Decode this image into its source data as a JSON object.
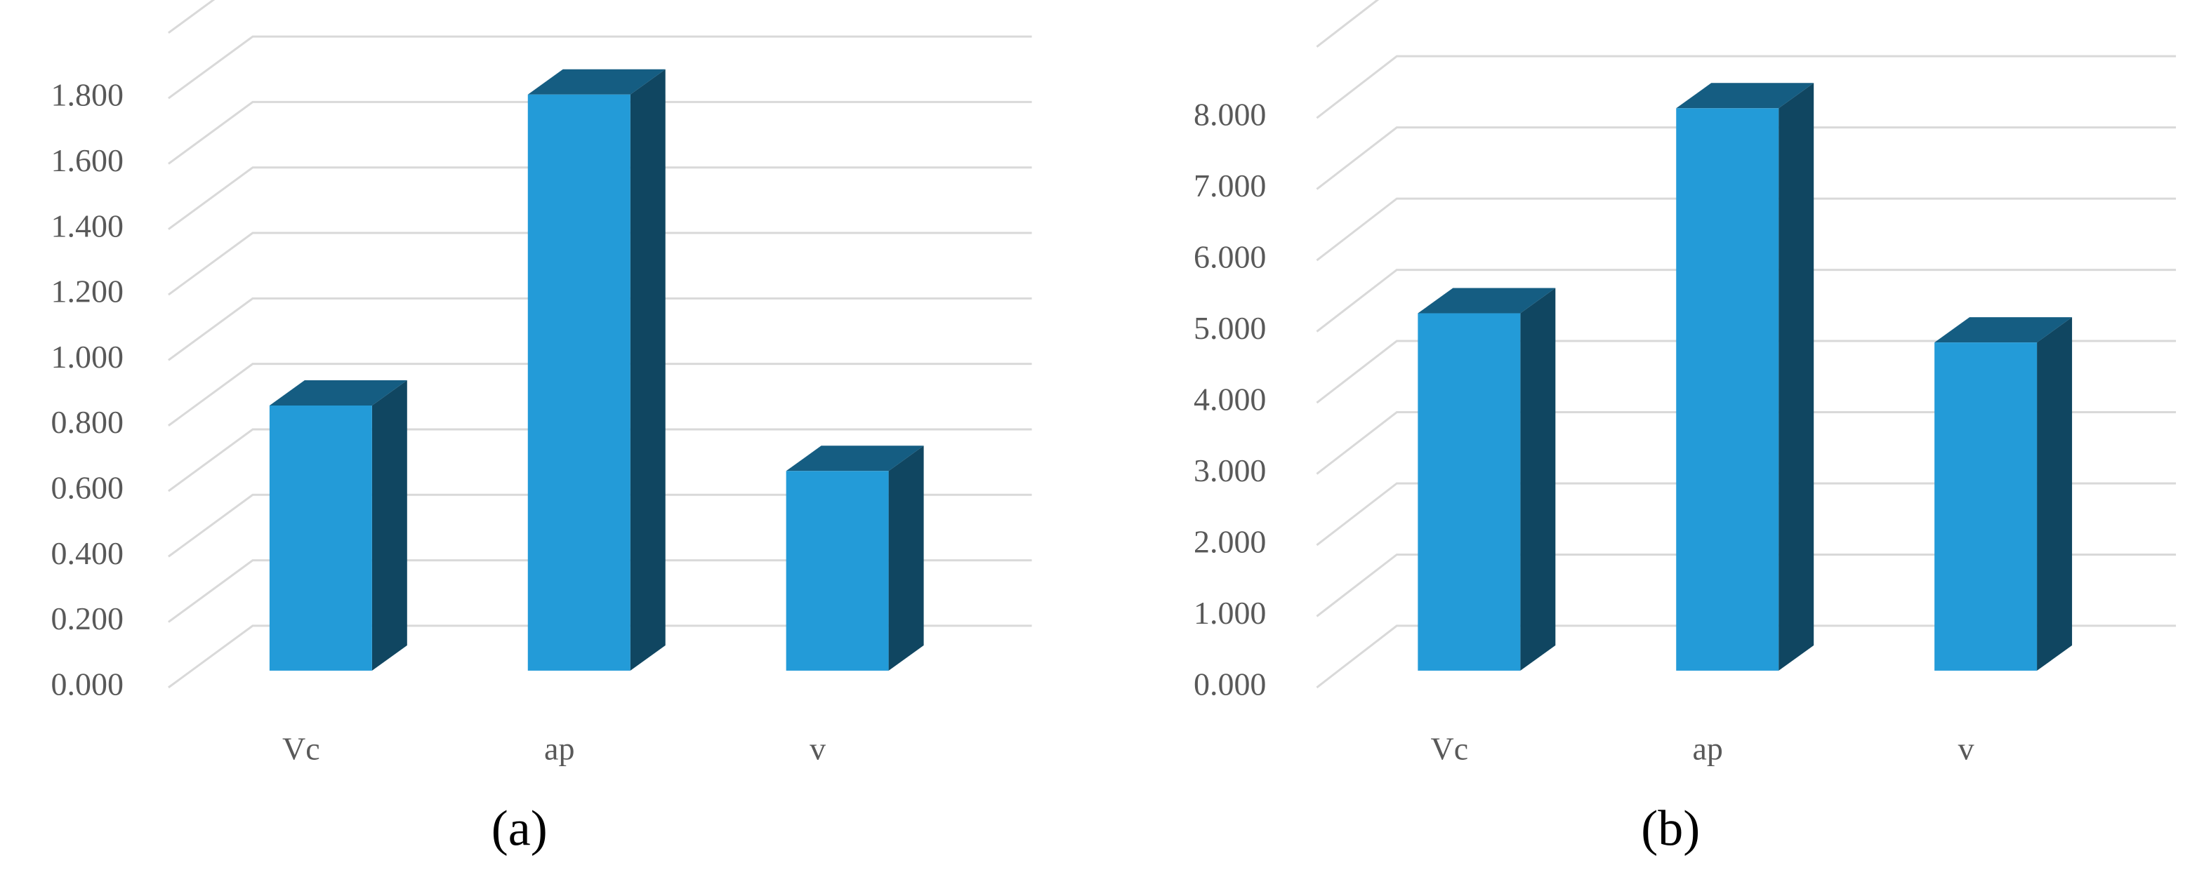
{
  "chart_data": [
    {
      "type": "bar",
      "caption": "(a)",
      "categories": [
        "Vc",
        "ap",
        "v"
      ],
      "values": [
        0.81,
        1.76,
        0.61
      ],
      "color": "#239bd8",
      "ylim": [
        0,
        2
      ],
      "yticks": [
        {
          "value": 0,
          "label": "0.000"
        },
        {
          "value": 0.2,
          "label": "0.200"
        },
        {
          "value": 0.4,
          "label": "0.400"
        },
        {
          "value": 0.6,
          "label": "0.600"
        },
        {
          "value": 0.8,
          "label": "0.800"
        },
        {
          "value": 1,
          "label": "1.000"
        },
        {
          "value": 1.2,
          "label": "1.200"
        },
        {
          "value": 1.4,
          "label": "1.400"
        },
        {
          "value": 1.6,
          "label": "1.600"
        },
        {
          "value": 1.8,
          "label": "1.800"
        }
      ],
      "grid": true
    },
    {
      "type": "bar",
      "caption": "(b)",
      "categories": [
        "Vc",
        "ap",
        "v"
      ],
      "values": [
        5.02,
        7.9,
        4.61
      ],
      "color": "#239bd8",
      "ylim": [
        0,
        9
      ],
      "yticks": [
        {
          "value": 0,
          "label": "0.000"
        },
        {
          "value": 1,
          "label": "1.000"
        },
        {
          "value": 2,
          "label": "2.000"
        },
        {
          "value": 3,
          "label": "3.000"
        },
        {
          "value": 4,
          "label": "4.000"
        },
        {
          "value": 5,
          "label": "5.000"
        },
        {
          "value": 6,
          "label": "6.000"
        },
        {
          "value": 7,
          "label": "7.000"
        },
        {
          "value": 8,
          "label": "8.000"
        }
      ],
      "grid": true
    }
  ]
}
